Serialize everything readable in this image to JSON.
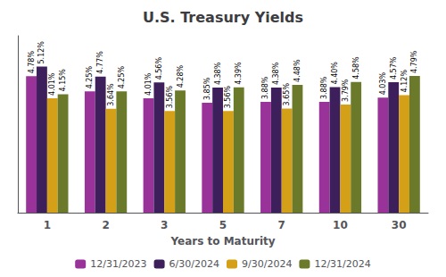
{
  "chart_data": {
    "type": "bar",
    "title": "U.S. Treasury Yields",
    "xlabel": "Years to Maturity",
    "categories": [
      "1",
      "2",
      "3",
      "5",
      "7",
      "10",
      "30"
    ],
    "series": [
      {
        "name": "12/31/2023",
        "color": "#993399",
        "values": [
          4.78,
          4.25,
          4.01,
          3.85,
          3.88,
          3.88,
          4.03
        ],
        "value_labels": [
          "4.78%",
          "4.25%",
          "4.01%",
          "3.85%",
          "3.88%",
          "3.88%",
          "4.03%"
        ]
      },
      {
        "name": "6/30/2024",
        "color": "#3D1F5C",
        "values": [
          5.12,
          4.77,
          4.56,
          4.38,
          4.38,
          4.4,
          4.57
        ],
        "value_labels": [
          "5.12%",
          "4.77%",
          "4.56%",
          "4.38%",
          "4.38%",
          "4.40%",
          "4.57%"
        ]
      },
      {
        "name": "9/30/2024",
        "color": "#D4A017",
        "values": [
          4.01,
          3.64,
          3.56,
          3.56,
          3.65,
          3.79,
          4.12
        ],
        "value_labels": [
          "4.01%",
          "3.64%",
          "3.56%",
          "3.56%",
          "3.65%",
          "3.79%",
          "4.12%"
        ]
      },
      {
        "name": "12/31/2024",
        "color": "#6B7A2A",
        "values": [
          4.15,
          4.25,
          4.28,
          4.39,
          4.48,
          4.58,
          4.79
        ],
        "value_labels": [
          "4.15%",
          "4.25%",
          "4.28%",
          "4.39%",
          "4.48%",
          "4.58%",
          "4.79%"
        ]
      }
    ],
    "ylim": [
      0,
      6.2
    ],
    "tick_labels": "x",
    "grid": false,
    "legend": "bottom",
    "data_labels": true
  }
}
